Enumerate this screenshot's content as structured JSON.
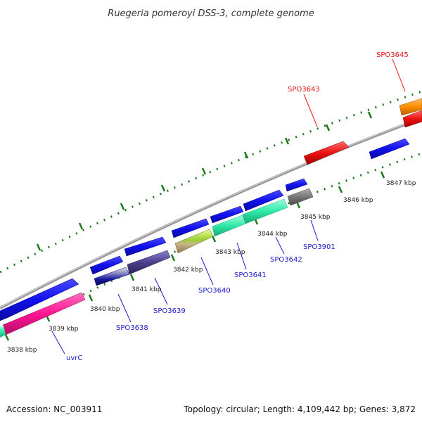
{
  "title": "Ruegeria pomeroyi DSS-3, complete genome",
  "footer": {
    "accession": "Accession: NC_003911",
    "topology": "Topology: circular; Length: 4,109,442 bp; Genes: 3,872"
  },
  "colors": {
    "backbone": "#8a8a8a",
    "tick": "#1a7a1a",
    "label_blue": "#1a1acc",
    "label_red": "#ee1111"
  },
  "ticks": [
    "3838 kbp",
    "3839 kbp",
    "3840 kbp",
    "3841 kbp",
    "3842 kbp",
    "3843 kbp",
    "3844 kbp",
    "3845 kbp",
    "3846 kbp",
    "3847 kbp"
  ],
  "genes": [
    {
      "id": "uvrC",
      "label": "uvrC",
      "color": "#ff1493",
      "label_color": "#1a1acc"
    },
    {
      "id": "SPO3638",
      "label": "SPO3638",
      "color": "#1a1aa0",
      "label_color": "#1a1acc"
    },
    {
      "id": "SPO3639",
      "label": "SPO3639",
      "color": "#4a3f8a",
      "label_color": "#1a1acc"
    },
    {
      "id": "SPO3640",
      "label": "SPO3640",
      "color": "#9acd32",
      "label_color": "#1a1acc"
    },
    {
      "id": "SPO3641",
      "label": "SPO3641",
      "color": "#2ee8a6",
      "label_color": "#1a1acc"
    },
    {
      "id": "SPO3642",
      "label": "SPO3642",
      "color": "#2ee8a6",
      "label_color": "#1a1acc"
    },
    {
      "id": "SPO3901",
      "label": "SPO3901",
      "color": "#707070",
      "label_color": "#1a1acc"
    },
    {
      "id": "SPO3643",
      "label": "SPO3643",
      "color": "#ee1111",
      "label_color": "#ee1111"
    },
    {
      "id": "SPO3645",
      "label": "SPO3645",
      "color": "#ff8c00",
      "label_color": "#ee1111"
    }
  ]
}
